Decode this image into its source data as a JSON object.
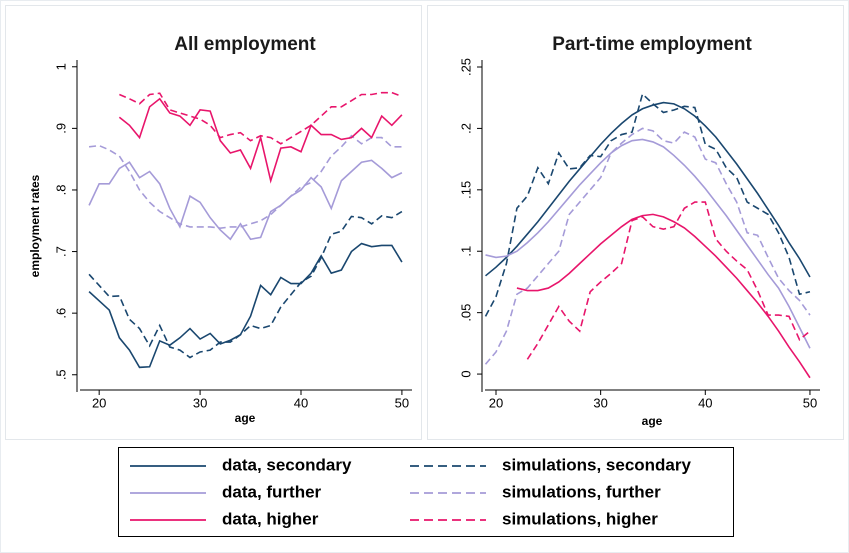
{
  "chart_data": [
    {
      "type": "line",
      "title": "All employment",
      "xlabel": "age",
      "ylabel": "employment rates",
      "xlim": [
        18.1,
        51
      ],
      "xticks": [
        20,
        30,
        40,
        50
      ],
      "ylim": [
        0.472,
        1.011
      ],
      "yticks": [
        {
          "value": 0.5,
          "label": ".5"
        },
        {
          "value": 0.6,
          "label": ".6"
        },
        {
          "value": 0.7,
          "label": ".7"
        },
        {
          "value": 0.8,
          "label": ".8"
        },
        {
          "value": 0.9,
          "label": ".9"
        },
        1
      ],
      "grid": false,
      "legend": "bottom",
      "x": [
        19,
        20,
        21,
        22,
        23,
        24,
        25,
        26,
        27,
        28,
        29,
        30,
        31,
        32,
        33,
        34,
        35,
        36,
        37,
        38,
        39,
        40,
        41,
        42,
        43,
        44,
        45,
        46,
        47,
        48,
        49,
        50
      ],
      "series": [
        {
          "name": "data, secondary",
          "color": "#1a476f",
          "style": "solid",
          "values": [
            0.635,
            0.62,
            0.605,
            0.56,
            0.54,
            0.512,
            0.513,
            0.555,
            0.548,
            0.56,
            0.575,
            0.558,
            0.567,
            0.55,
            0.556,
            0.565,
            0.595,
            0.645,
            0.63,
            0.658,
            0.648,
            0.648,
            0.665,
            0.693,
            0.665,
            0.67,
            0.7,
            0.713,
            0.708,
            0.71,
            0.71,
            0.683
          ]
        },
        {
          "name": "simulations, secondary",
          "color": "#1a476f",
          "style": "dash",
          "values": [
            0.663,
            0.645,
            0.627,
            0.628,
            0.59,
            0.575,
            0.547,
            0.58,
            0.545,
            0.54,
            0.528,
            0.537,
            0.54,
            0.553,
            0.553,
            0.565,
            0.58,
            0.575,
            0.58,
            0.61,
            0.63,
            0.65,
            0.66,
            0.69,
            0.728,
            0.733,
            0.757,
            0.755,
            0.745,
            0.758,
            0.755,
            0.765
          ]
        },
        {
          "name": "data, further",
          "color": "#a59bd8",
          "style": "solid",
          "values": [
            0.775,
            0.81,
            0.81,
            0.835,
            0.845,
            0.82,
            0.83,
            0.81,
            0.77,
            0.74,
            0.79,
            0.78,
            0.755,
            0.735,
            0.72,
            0.745,
            0.72,
            0.723,
            0.765,
            0.775,
            0.79,
            0.8,
            0.82,
            0.805,
            0.77,
            0.815,
            0.83,
            0.845,
            0.848,
            0.835,
            0.82,
            0.828
          ]
        },
        {
          "name": "simulations, further",
          "color": "#a59bd8",
          "style": "dash",
          "values": [
            0.87,
            0.872,
            0.865,
            0.855,
            0.83,
            0.8,
            0.78,
            0.765,
            0.755,
            0.745,
            0.74,
            0.74,
            0.74,
            0.738,
            0.74,
            0.74,
            0.745,
            0.75,
            0.76,
            0.775,
            0.79,
            0.805,
            0.812,
            0.83,
            0.855,
            0.87,
            0.888,
            0.875,
            0.885,
            0.885,
            0.87,
            0.87
          ]
        },
        {
          "name": "data, higher",
          "color": "#e8156b",
          "style": "solid",
          "values": [
            null,
            null,
            null,
            0.918,
            0.905,
            0.885,
            0.935,
            0.948,
            0.925,
            0.92,
            0.905,
            0.93,
            0.928,
            0.88,
            0.86,
            0.865,
            0.835,
            0.885,
            0.815,
            0.868,
            0.87,
            0.862,
            0.905,
            0.89,
            0.89,
            0.882,
            0.885,
            0.9,
            0.885,
            0.92,
            0.905,
            0.922
          ]
        },
        {
          "name": "simulations, higher",
          "color": "#e8156b",
          "style": "dash",
          "values": [
            null,
            null,
            null,
            0.955,
            0.948,
            0.94,
            0.955,
            0.957,
            0.93,
            0.925,
            0.92,
            0.915,
            0.905,
            0.885,
            0.89,
            0.893,
            0.88,
            0.888,
            0.885,
            0.875,
            0.885,
            0.895,
            0.905,
            0.92,
            0.935,
            0.935,
            0.945,
            0.955,
            0.955,
            0.958,
            0.958,
            0.952
          ]
        }
      ]
    },
    {
      "type": "line",
      "title": "Part-time employment",
      "xlabel": "age",
      "xlim": [
        18.95,
        50.96
      ],
      "xticks": [
        20,
        30,
        40,
        50
      ],
      "ylim": [
        -0.0146,
        0.2557
      ],
      "yticks": [
        0,
        {
          "value": 0.05,
          "label": ".05"
        },
        {
          "value": 0.1,
          "label": ".1"
        },
        {
          "value": 0.15,
          "label": ".15"
        },
        {
          "value": 0.2,
          "label": ".2"
        },
        {
          "value": 0.25,
          "label": ".25"
        }
      ],
      "grid": false,
      "x": [
        19,
        20,
        21,
        22,
        23,
        24,
        25,
        26,
        27,
        28,
        29,
        30,
        31,
        32,
        33,
        34,
        35,
        36,
        37,
        38,
        39,
        40,
        41,
        42,
        43,
        44,
        45,
        46,
        47,
        48,
        49,
        50
      ],
      "series": [
        {
          "color": "#1a476f",
          "style": "solid",
          "values": [
            0.08,
            0.087,
            0.095,
            0.104,
            0.114,
            0.124,
            0.135,
            0.146,
            0.157,
            0.167,
            0.177,
            0.187,
            0.196,
            0.204,
            0.211,
            0.216,
            0.219,
            0.221,
            0.22,
            0.216,
            0.21,
            0.202,
            0.193,
            0.182,
            0.171,
            0.159,
            0.147,
            0.134,
            0.121,
            0.107,
            0.094,
            0.079
          ]
        },
        {
          "color": "#1a476f",
          "style": "dash",
          "values": [
            0.047,
            0.063,
            0.09,
            0.135,
            0.145,
            0.168,
            0.155,
            0.18,
            0.167,
            0.168,
            0.178,
            0.177,
            0.19,
            0.195,
            0.197,
            0.228,
            0.22,
            0.213,
            0.215,
            0.218,
            0.217,
            0.187,
            0.183,
            0.168,
            0.16,
            0.14,
            0.135,
            0.13,
            0.115,
            0.095,
            0.065,
            0.067
          ]
        },
        {
          "color": "#a59bd8",
          "style": "solid",
          "values": [
            0.097,
            0.095,
            0.096,
            0.1,
            0.107,
            0.115,
            0.124,
            0.134,
            0.144,
            0.154,
            0.163,
            0.172,
            0.18,
            0.186,
            0.19,
            0.191,
            0.189,
            0.185,
            0.178,
            0.17,
            0.161,
            0.151,
            0.14,
            0.129,
            0.117,
            0.105,
            0.093,
            0.081,
            0.07,
            0.055,
            0.038,
            0.021
          ]
        },
        {
          "color": "#a59bd8",
          "style": "dash",
          "values": [
            0.008,
            0.018,
            0.035,
            0.065,
            0.07,
            0.08,
            0.09,
            0.1,
            0.13,
            0.14,
            0.15,
            0.16,
            0.18,
            0.188,
            0.195,
            0.2,
            0.198,
            0.19,
            0.188,
            0.197,
            0.193,
            0.175,
            0.172,
            0.155,
            0.14,
            0.115,
            0.113,
            0.095,
            0.078,
            0.068,
            0.06,
            0.048
          ]
        },
        {
          "color": "#e8156b",
          "style": "solid",
          "values": [
            null,
            null,
            null,
            0.07,
            0.068,
            0.068,
            0.07,
            0.075,
            0.082,
            0.09,
            0.098,
            0.106,
            0.113,
            0.12,
            0.126,
            0.129,
            0.13,
            0.128,
            0.124,
            0.119,
            0.112,
            0.104,
            0.096,
            0.087,
            0.078,
            0.068,
            0.058,
            0.047,
            0.035,
            0.022,
            0.01,
            -0.003
          ]
        },
        {
          "color": "#e8156b",
          "style": "dash",
          "values": [
            null,
            null,
            null,
            null,
            0.012,
            0.025,
            0.04,
            0.055,
            0.043,
            0.035,
            0.067,
            0.075,
            0.082,
            0.09,
            0.125,
            0.128,
            0.12,
            0.118,
            0.12,
            0.135,
            0.14,
            0.14,
            0.11,
            0.1,
            0.092,
            0.085,
            0.068,
            0.048,
            0.048,
            0.047,
            0.028,
            0.035
          ]
        }
      ]
    }
  ]
}
